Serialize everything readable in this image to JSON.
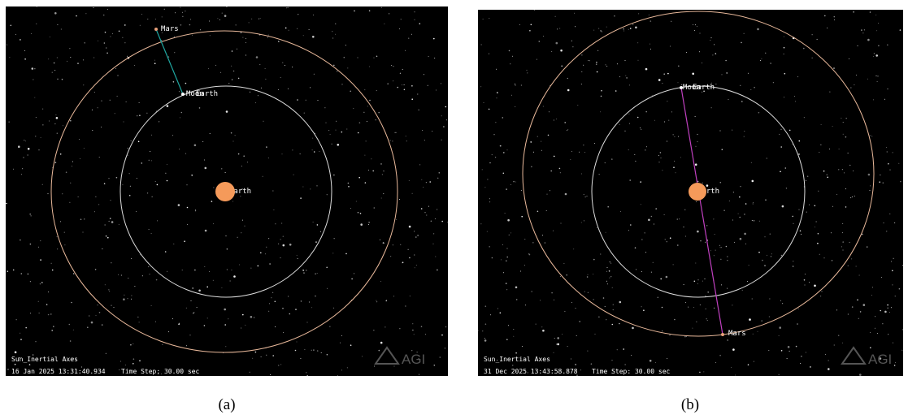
{
  "panels": [
    {
      "caption": "(a)",
      "frame": "Sun_Inertial Axes",
      "timestamp": "16 Jan 2025 13:31:40.934",
      "time_step": "Time Step: 30.00 sec",
      "logo": "AGI",
      "labels": {
        "mars": "Mars",
        "moon": "Moon",
        "earth": "Earth",
        "center": "Earth"
      }
    },
    {
      "caption": "(b)",
      "frame": "Sun_Inertial Axes",
      "timestamp": "31 Dec 2025 13:43:58.878",
      "time_step": "Time Step: 30.00 sec",
      "logo": "AGI",
      "labels": {
        "mars": "Mars",
        "moon": "Moon",
        "earth": "Earth",
        "center": "Earth"
      }
    }
  ]
}
